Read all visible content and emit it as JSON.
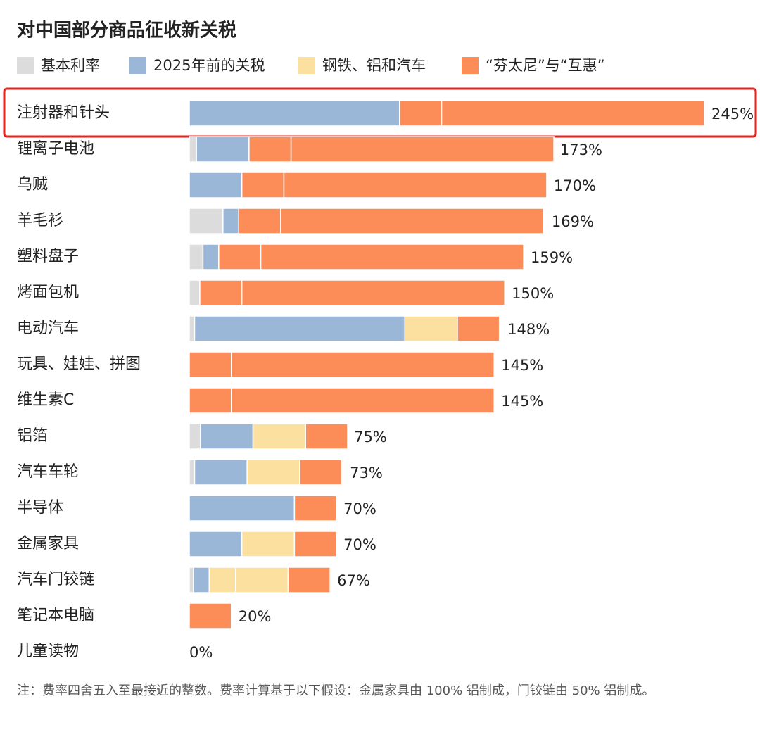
{
  "chart_data": {
    "type": "stacked-bar-horizontal",
    "title": "对中国部分商品征收新关税",
    "categories": [
      "注射器和针头",
      "锂离子电池",
      "乌贼",
      "羊毛衫",
      "塑料盘子",
      "烤面包机",
      "电动汽车",
      "玩具、娃娃、拼图",
      "维生素C",
      "铝箔",
      "汽车车轮",
      "半导体",
      "金属家具",
      "汽车门铰链",
      "笔记本电脑",
      "儿童读物"
    ],
    "series": [
      {
        "name": "基本利率",
        "color": "#dcdcdc",
        "values": [
          [],
          [
            3.4
          ],
          [],
          [
            16
          ],
          [
            6.5
          ],
          [
            5
          ],
          [
            2.5
          ],
          [],
          [],
          [
            5.3
          ],
          [
            2.5
          ],
          [],
          [],
          [
            2
          ],
          [],
          []
        ]
      },
      {
        "name": "2025年前的关税",
        "color": "#9bb7d7",
        "values": [
          [
            100
          ],
          [
            25
          ],
          [
            25
          ],
          [
            7.5
          ],
          [
            7.5
          ],
          [],
          [
            100
          ],
          [],
          [],
          [
            25
          ],
          [
            25
          ],
          [
            50
          ],
          [
            25
          ],
          [
            7.5
          ],
          [],
          []
        ]
      },
      {
        "name": "钢铁、铝和汽车",
        "color": "#fbe09f",
        "values": [
          [],
          [],
          [],
          [],
          [],
          [],
          [
            25
          ],
          [],
          [],
          [
            25
          ],
          [
            25
          ],
          [],
          [
            25
          ],
          [
            12.5,
            25
          ],
          [],
          []
        ]
      },
      {
        "name": "“芬太尼”与“互惠”",
        "color": "#fc8d59",
        "values": [
          [
            20,
            125
          ],
          [
            20,
            125
          ],
          [
            20,
            125
          ],
          [
            20,
            125
          ],
          [
            20,
            125
          ],
          [
            20,
            125
          ],
          [
            20
          ],
          [
            20,
            125
          ],
          [
            20,
            125
          ],
          [
            20
          ],
          [
            20
          ],
          [
            20
          ],
          [
            20
          ],
          [
            20
          ],
          [
            20
          ],
          []
        ]
      }
    ],
    "totals": [
      245,
      173,
      170,
      169,
      159,
      150,
      148,
      145,
      145,
      75,
      73,
      70,
      70,
      67,
      20,
      0
    ],
    "total_labels": [
      "245%",
      "173%",
      "170%",
      "169%",
      "159%",
      "150%",
      "148%",
      "145%",
      "145%",
      "75%",
      "73%",
      "70%",
      "70%",
      "67%",
      "20%",
      "0%"
    ],
    "note": "注：费率四舍五入至最接近的整数。费率计算基于以下假设：金属家具由 100% 铝制成，门铰链由 50% 铝制成。"
  }
}
